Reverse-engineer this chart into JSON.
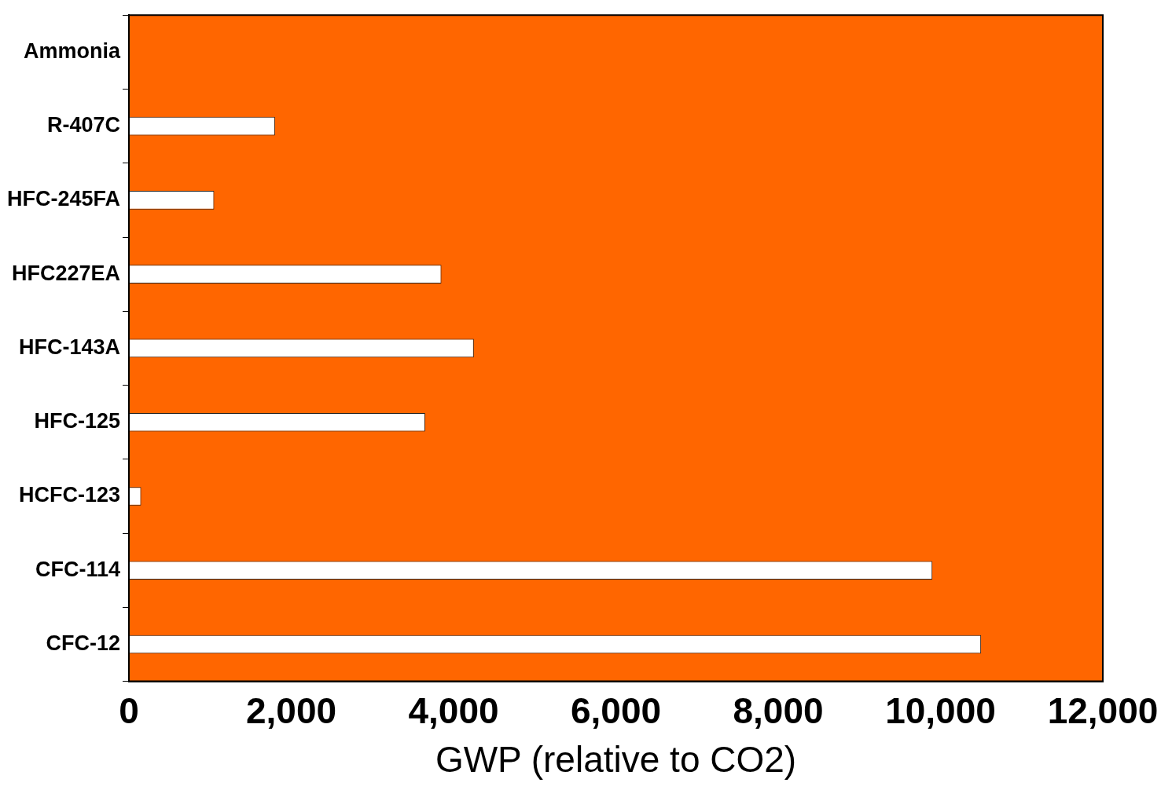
{
  "chart_data": {
    "type": "bar",
    "orientation": "horizontal",
    "xlabel": "GWP (relative to CO2)",
    "categories": [
      "Ammonia",
      "R-407C",
      "HFC-245FA",
      "HFC227EA",
      "HFC-143A",
      "HFC-125",
      "HCFC-123",
      "CFC-114",
      "CFC-12"
    ],
    "values": [
      0,
      1800,
      1050,
      3850,
      4250,
      3650,
      150,
      9900,
      10500
    ],
    "color": "#ffffff",
    "xlim": [
      0,
      12000
    ],
    "xticks": [
      0,
      {
        "value": 2000,
        "label": "2,000"
      },
      {
        "value": 4000,
        "label": "4,000"
      },
      {
        "value": 6000,
        "label": "6,000"
      },
      {
        "value": 8000,
        "label": "8,000"
      },
      {
        "value": 10000,
        "label": "10,000"
      },
      {
        "value": 12000,
        "label": "12,000"
      }
    ],
    "grid": false,
    "legend": false
  }
}
